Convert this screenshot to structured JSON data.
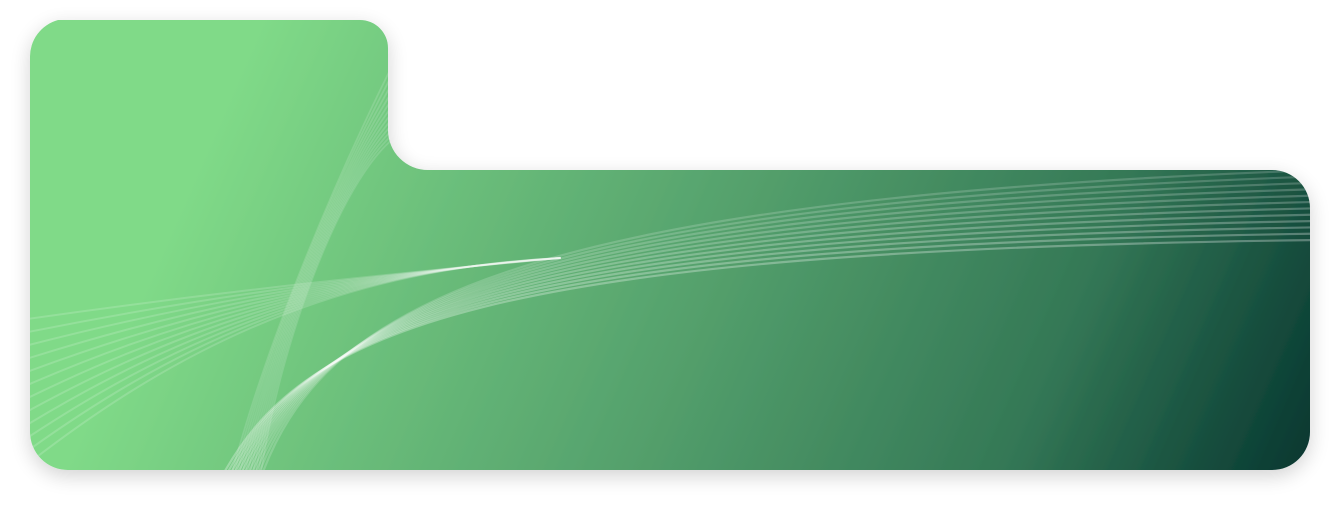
{
  "banner": {
    "colors": {
      "top_light": "#80DA88",
      "mid": "#54A06C",
      "bottom_dark": "#05352F",
      "lines": "#FFFFFF"
    },
    "decoration": "fanned-wave-lines",
    "line_count": 12
  }
}
